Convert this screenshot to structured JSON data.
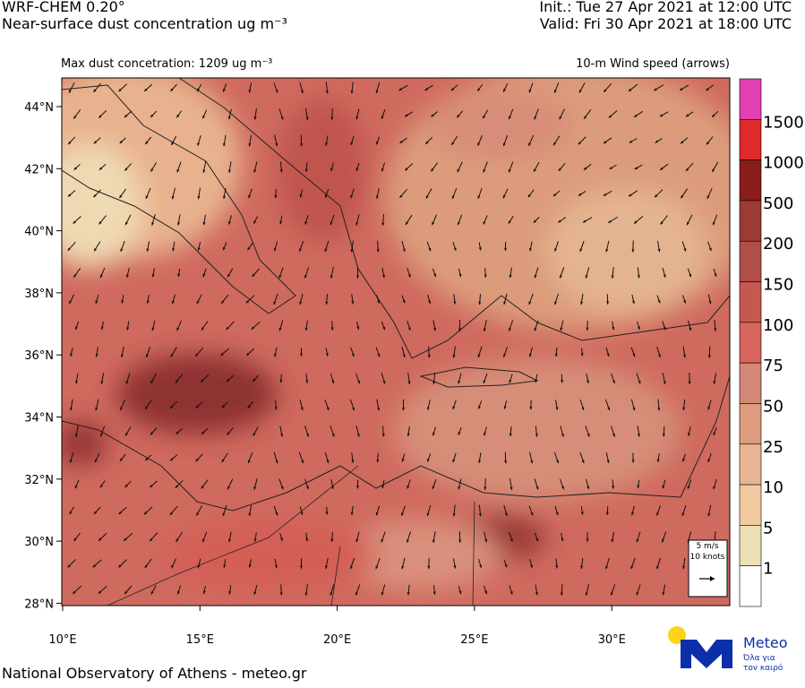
{
  "header": {
    "model": "WRF-CHEM 0.20°",
    "field": "Near-surface dust concentration ug m⁻³",
    "init": "Init.:  Tue 27 Apr 2021 at 12:00 UTC",
    "valid": "Valid: Fri 30 Apr 2021 at 18:00 UTC",
    "max_note": "Max dust concetration: 1209 ug m⁻³",
    "wind_note": "10-m Wind speed (arrows)"
  },
  "map": {
    "lat_labels": [
      "44°N",
      "42°N",
      "40°N",
      "38°N",
      "36°N",
      "34°N",
      "32°N",
      "30°N",
      "28°N"
    ],
    "lon_labels": [
      "10°E",
      "15°E",
      "20°E",
      "25°E",
      "30°E"
    ],
    "wind_legend": {
      "speed": "5 m/s",
      "knots": "10 knots"
    }
  },
  "colorbar": {
    "colors": [
      "#e23fb3",
      "#de2a2a",
      "#8a1c1c",
      "#9c3a36",
      "#b04e4a",
      "#c65852",
      "#d6665e",
      "#d48878",
      "#dd9c7e",
      "#e8b594",
      "#f1caa0",
      "#ece0b4",
      "#ffffff"
    ],
    "labels": [
      "1500",
      "1000",
      "500",
      "200",
      "150",
      "100",
      "75",
      "50",
      "25",
      "10",
      "5",
      "1"
    ]
  },
  "footer": {
    "credit": "National Observatory of Athens - meteo.gr",
    "logo_name": "Meteo",
    "logo_tagline_1": "Όλα για",
    "logo_tagline_2": "τον καιρό"
  }
}
